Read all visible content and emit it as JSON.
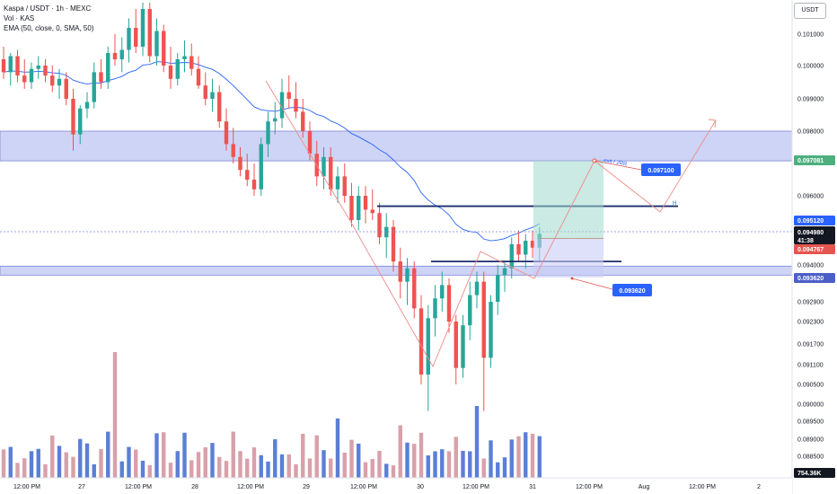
{
  "legend": {
    "symbol_line": "Kaspa / USDT · 1h · MEXC",
    "vol_line": "Vol · KAS",
    "ema_line": "EMA (50, close, 0, SMA, 50)"
  },
  "currency_button": "USDT",
  "price_axis": {
    "ticks": [
      "0.101000",
      "0.100000",
      "0.099000",
      "0.098000",
      "0.096000",
      "0.094000",
      "0.092900",
      "0.092300",
      "0.091700",
      "0.091100",
      "0.090500",
      "0.090000",
      "0.089500",
      "0.089000",
      "0.088500"
    ],
    "tags": {
      "upper_zone": "0.097081",
      "ema": "0.095120",
      "last_price": "0.094980",
      "countdown": "41:38",
      "red_line": "0.094767",
      "lower_zone": "0.093620",
      "volume": "754.36K"
    }
  },
  "time_axis": [
    "12:00 PM",
    "27",
    "12:00 PM",
    "28",
    "12:00 PM",
    "29",
    "12:00 PM",
    "30",
    "12:00 PM",
    "31",
    "12:00 PM",
    "Aug",
    "12:00 PM",
    "2"
  ],
  "annotations": {
    "target_label": "0.097100",
    "support_label": "0.093620",
    "path_note": "exit / 2RR",
    "h_label": "H"
  },
  "colors": {
    "up": "#26a69a",
    "down": "#ef5350",
    "vol_up": "#5b7fd6",
    "vol_down": "#d9a0aa",
    "ema": "#2962ff",
    "zone_fill": "#c5cdf3",
    "zone_border": "#7b86d6",
    "level_line": "#1a2c6e",
    "tag_blue": "#2962ff",
    "tag_green": "#4caf7d",
    "tag_red": "#e5554f",
    "path": "#f08a8a"
  },
  "chart_data": {
    "type": "candlestick",
    "title": "Kaspa / USDT · 1h · MEXC",
    "y_axis_labels": [
      "0.101000",
      "0.100000",
      "0.099000",
      "0.098000",
      "0.096000",
      "0.094000",
      "0.092900",
      "0.092300",
      "0.091700",
      "0.091100",
      "0.090500",
      "0.090000",
      "0.089500",
      "0.089000",
      "0.088500"
    ],
    "x_axis_labels": [
      "12:00 PM",
      "27",
      "12:00 PM",
      "28",
      "12:00 PM",
      "29",
      "12:00 PM",
      "30",
      "12:00 PM",
      "31",
      "12:00 PM",
      "Aug",
      "12:00 PM",
      "2"
    ],
    "zones": [
      {
        "name": "upper zone",
        "from": 0.098,
        "to": 0.097081
      },
      {
        "name": "lower zone",
        "from": 0.09375,
        "to": 0.09362
      }
    ],
    "levels": [
      0.0957,
      0.0941,
      0.094767
    ],
    "last_price": 0.09498,
    "ema_value": 0.09512,
    "volume_last": "754.36K",
    "candles": [
      [
        0.1002,
        0.1006,
        0.0996,
        0.0998
      ],
      [
        0.0998,
        0.1004,
        0.0994,
        0.1003
      ],
      [
        0.1003,
        0.1005,
        0.0995,
        0.0997
      ],
      [
        0.0997,
        0.1002,
        0.0993,
        0.0995
      ],
      [
        0.0995,
        0.1001,
        0.0993,
        0.0999
      ],
      [
        0.0999,
        0.1003,
        0.0996,
        0.1
      ],
      [
        0.1,
        0.1002,
        0.0995,
        0.0997
      ],
      [
        0.0997,
        0.1,
        0.0992,
        0.0994
      ],
      [
        0.0994,
        0.0999,
        0.099,
        0.0996
      ],
      [
        0.0996,
        0.0998,
        0.0988,
        0.099
      ],
      [
        0.099,
        0.0993,
        0.0974,
        0.0979
      ],
      [
        0.0979,
        0.0988,
        0.0976,
        0.0987
      ],
      [
        0.0987,
        0.0992,
        0.0984,
        0.0989
      ],
      [
        0.0989,
        0.1001,
        0.0987,
        0.0998
      ],
      [
        0.0998,
        0.1002,
        0.0993,
        0.0995
      ],
      [
        0.0995,
        0.1006,
        0.0993,
        0.1004
      ],
      [
        0.1004,
        0.101,
        0.1,
        0.1002
      ],
      [
        0.1002,
        0.1009,
        0.0998,
        0.1005
      ],
      [
        0.1005,
        0.1015,
        0.1001,
        0.1012
      ],
      [
        0.1012,
        0.1018,
        0.1004,
        0.1006
      ],
      [
        0.1006,
        0.102,
        0.1003,
        0.1018
      ],
      [
        0.1018,
        0.102,
        0.1001,
        0.1003
      ],
      [
        0.1003,
        0.1015,
        0.1,
        0.1011
      ],
      [
        0.1011,
        0.1013,
        0.0998,
        0.1
      ],
      [
        0.1,
        0.1006,
        0.0993,
        0.0996
      ],
      [
        0.0996,
        0.1004,
        0.0994,
        0.1002
      ],
      [
        0.1002,
        0.1008,
        0.0998,
        0.1003
      ],
      [
        0.1003,
        0.1007,
        0.0997,
        0.0999
      ],
      [
        0.0999,
        0.1003,
        0.0993,
        0.0994
      ],
      [
        0.0994,
        0.0998,
        0.0988,
        0.099
      ],
      [
        0.099,
        0.0996,
        0.0986,
        0.0992
      ],
      [
        0.0992,
        0.0994,
        0.0981,
        0.0983
      ],
      [
        0.0983,
        0.0987,
        0.0974,
        0.0976
      ],
      [
        0.0976,
        0.0981,
        0.097,
        0.0972
      ],
      [
        0.0972,
        0.0975,
        0.0966,
        0.0968
      ],
      [
        0.0968,
        0.0973,
        0.0963,
        0.0965
      ],
      [
        0.0965,
        0.097,
        0.096,
        0.0962
      ],
      [
        0.0962,
        0.0978,
        0.096,
        0.0976
      ],
      [
        0.0976,
        0.0986,
        0.0972,
        0.0983
      ],
      [
        0.0983,
        0.0989,
        0.0979,
        0.0984
      ],
      [
        0.0984,
        0.0996,
        0.0981,
        0.0992
      ],
      [
        0.0992,
        0.0997,
        0.0987,
        0.099
      ],
      [
        0.099,
        0.0995,
        0.0984,
        0.0986
      ],
      [
        0.0986,
        0.099,
        0.0978,
        0.098
      ],
      [
        0.098,
        0.0983,
        0.0971,
        0.0973
      ],
      [
        0.0973,
        0.0977,
        0.0963,
        0.0966
      ],
      [
        0.0966,
        0.0975,
        0.0962,
        0.0972
      ],
      [
        0.0972,
        0.0975,
        0.096,
        0.0962
      ],
      [
        0.0962,
        0.0969,
        0.0958,
        0.0966
      ],
      [
        0.0966,
        0.097,
        0.0958,
        0.096
      ],
      [
        0.096,
        0.0964,
        0.0951,
        0.0953
      ],
      [
        0.0953,
        0.0963,
        0.095,
        0.096
      ],
      [
        0.096,
        0.0963,
        0.0952,
        0.0956
      ],
      [
        0.0956,
        0.0962,
        0.0953,
        0.0955
      ],
      [
        0.0955,
        0.0958,
        0.0946,
        0.0948
      ],
      [
        0.0948,
        0.0955,
        0.0942,
        0.0951
      ],
      [
        0.0951,
        0.0953,
        0.0938,
        0.0941
      ],
      [
        0.0941,
        0.0945,
        0.093,
        0.0935
      ],
      [
        0.0935,
        0.0942,
        0.0928,
        0.0939
      ],
      [
        0.0939,
        0.0941,
        0.0924,
        0.0927
      ],
      [
        0.0927,
        0.0931,
        0.0905,
        0.0908
      ],
      [
        0.0908,
        0.0928,
        0.0898,
        0.0924
      ],
      [
        0.0924,
        0.0934,
        0.0919,
        0.093
      ],
      [
        0.093,
        0.0938,
        0.0926,
        0.0934
      ],
      [
        0.0934,
        0.0936,
        0.092,
        0.0923
      ],
      [
        0.0923,
        0.0925,
        0.0905,
        0.091
      ],
      [
        0.091,
        0.0925,
        0.0907,
        0.0922
      ],
      [
        0.0922,
        0.0935,
        0.0918,
        0.0931
      ],
      [
        0.0931,
        0.0938,
        0.0927,
        0.0935
      ],
      [
        0.0935,
        0.0938,
        0.0898,
        0.0913
      ],
      [
        0.0913,
        0.0931,
        0.091,
        0.0929
      ],
      [
        0.0929,
        0.094,
        0.0925,
        0.0937
      ],
      [
        0.0937,
        0.0941,
        0.0932,
        0.0939
      ],
      [
        0.0939,
        0.0948,
        0.0936,
        0.0946
      ],
      [
        0.0946,
        0.095,
        0.0941,
        0.0943
      ],
      [
        0.0943,
        0.0949,
        0.0939,
        0.0947
      ],
      [
        0.0947,
        0.095,
        0.0942,
        0.0945
      ],
      [
        0.0945,
        0.0951,
        0.0941,
        0.0949
      ]
    ]
  }
}
